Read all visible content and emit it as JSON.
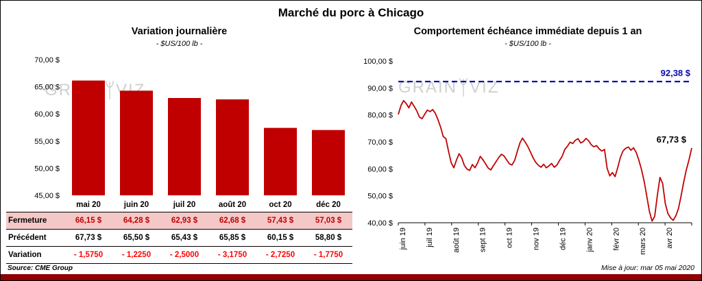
{
  "page": {
    "title": "Marché du porc à Chicago",
    "source": "Source: CME Group",
    "updated": "Mise à jour: mar 05 mai 2020"
  },
  "watermark": {
    "left": "GRAIN",
    "right": "VIZ"
  },
  "chart_data": [
    {
      "type": "bar",
      "title": "Variation journalière",
      "subtitle": "- $US/100 lb -",
      "categories": [
        "mai 20",
        "juin 20",
        "juil 20",
        "août 20",
        "oct 20",
        "déc 20"
      ],
      "values": [
        66.15,
        64.28,
        62.93,
        62.68,
        57.43,
        57.03
      ],
      "ylim": [
        45,
        70
      ],
      "yticks": [
        {
          "v": 70,
          "label": "70,00 $"
        },
        {
          "v": 65,
          "label": "65,00 $"
        },
        {
          "v": 60,
          "label": "60,00 $"
        },
        {
          "v": 55,
          "label": "55,00 $"
        },
        {
          "v": 50,
          "label": "50,00 $"
        },
        {
          "v": 45,
          "label": "45,00 $"
        }
      ],
      "bar_color": "#C00000",
      "grid": false,
      "legend": false
    },
    {
      "type": "line",
      "title": "Comportement échéance immédiate depuis 1 an",
      "subtitle": "- $US/100 lb -",
      "x_labels": [
        "juin 19",
        "juil 19",
        "août 19",
        "sept 19",
        "oct 19",
        "nov 19",
        "déc 19",
        "janv 20",
        "févr 20",
        "mars 20",
        "avr 20"
      ],
      "values": [
        80.2,
        83.5,
        85.3,
        84.2,
        82.6,
        84.8,
        83.2,
        81.5,
        79.2,
        78.6,
        80.3,
        81.8,
        81.2,
        82.0,
        80.6,
        78.3,
        75.5,
        72.0,
        71.2,
        66.5,
        62.3,
        60.4,
        63.2,
        65.6,
        64.1,
        61.2,
        59.9,
        59.4,
        61.6,
        60.4,
        62.2,
        64.6,
        63.4,
        61.9,
        60.3,
        59.6,
        61.2,
        62.7,
        64.2,
        65.4,
        64.8,
        63.3,
        61.9,
        61.4,
        63.1,
        66.4,
        69.6,
        71.4,
        69.9,
        68.3,
        66.2,
        64.1,
        62.4,
        61.3,
        60.6,
        61.7,
        60.4,
        61.1,
        62.0,
        60.6,
        61.4,
        63.1,
        64.7,
        67.2,
        68.4,
        69.9,
        69.4,
        70.6,
        71.2,
        69.6,
        70.1,
        71.3,
        70.4,
        68.9,
        68.2,
        68.6,
        67.4,
        66.6,
        67.2,
        60.2,
        57.4,
        58.6,
        57.1,
        60.4,
        64.2,
        66.6,
        67.6,
        68.1,
        66.9,
        67.8,
        66.1,
        63.2,
        59.8,
        55.4,
        49.8,
        44.2,
        40.6,
        42.4,
        50.2,
        56.8,
        54.6,
        47.2,
        43.4,
        41.8,
        40.9,
        42.6,
        45.3,
        50.1,
        55.2,
        59.8,
        63.4,
        67.73
      ],
      "ylim": [
        40,
        100
      ],
      "yticks": [
        {
          "v": 100,
          "label": "100,00 $"
        },
        {
          "v": 90,
          "label": "90,00 $"
        },
        {
          "v": 80,
          "label": "80,00 $"
        },
        {
          "v": 70,
          "label": "70,00 $"
        },
        {
          "v": 60,
          "label": "60,00 $"
        },
        {
          "v": 50,
          "label": "50,00 $"
        },
        {
          "v": 40,
          "label": "40,00 $"
        }
      ],
      "line_color": "#C00000",
      "reference_line": {
        "value": 92.38,
        "label": "92,38 $",
        "color": "#0A0AB4",
        "style": "dashed"
      },
      "last_point_label": "67,73 $",
      "grid": false,
      "legend": false
    }
  ],
  "table": {
    "rows": [
      {
        "label": "Fermeture",
        "values": [
          "66,15 $",
          "64,28 $",
          "62,93 $",
          "62,68 $",
          "57,43 $",
          "57,03 $"
        ]
      },
      {
        "label": "Précédent",
        "values": [
          "67,73 $",
          "65,50 $",
          "65,43 $",
          "65,85 $",
          "60,15 $",
          "58,80 $"
        ]
      },
      {
        "label": "Variation",
        "values": [
          "- 1,5750",
          "- 1,2250",
          "- 2,5000",
          "- 3,1750",
          "- 2,7250",
          "- 1,7750"
        ]
      }
    ]
  }
}
